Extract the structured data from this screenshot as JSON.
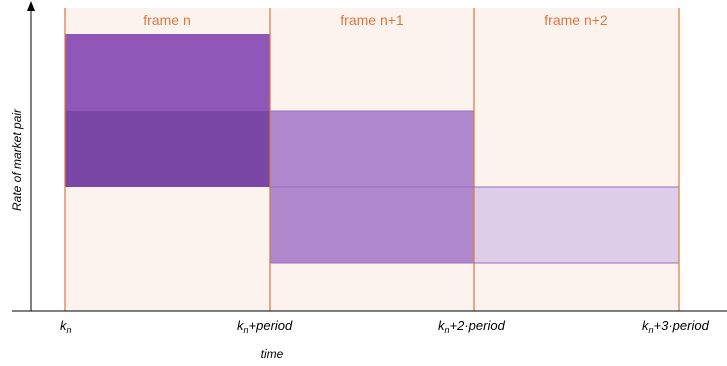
{
  "colors": {
    "frame_bg": "#fdf3ee",
    "frame_line": "#d9773f",
    "frame_label": "#d9773f",
    "block_dark": "#7b47a6",
    "block_mid": "#8f58b8",
    "block_light": "#af88cd",
    "block_pale": "#ddcde8",
    "block_border": "#9a6cc2",
    "axis": "#000000"
  },
  "frames": [
    {
      "label": "frame n"
    },
    {
      "label": "frame n+1"
    },
    {
      "label": "frame n+2"
    }
  ],
  "x_ticks": [
    {
      "base": "k",
      "sub": "n",
      "suffix": ""
    },
    {
      "base": "k",
      "sub": "n",
      "suffix": "+period"
    },
    {
      "base": "k",
      "sub": "n",
      "suffix": "+2·period"
    },
    {
      "base": "k",
      "sub": "n",
      "suffix": "+3·period"
    }
  ],
  "x_axis_label": "time",
  "y_axis_label": "Rate of market pair"
}
